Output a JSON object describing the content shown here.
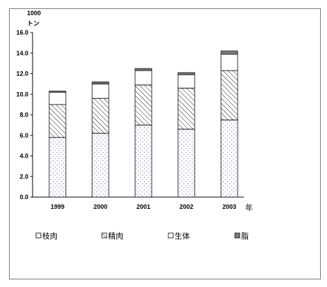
{
  "chart_data": {
    "type": "bar",
    "stacked": true,
    "categories": [
      "1999",
      "2000",
      "2001",
      "2002",
      "2003"
    ],
    "series": [
      {
        "name": "枝肉",
        "values": [
          5.8,
          6.2,
          7.0,
          6.6,
          7.5
        ],
        "fill": "dots",
        "color": "#9a9ad6"
      },
      {
        "name": "精肉",
        "values": [
          3.2,
          3.4,
          3.9,
          4.0,
          4.8
        ],
        "fill": "hatch",
        "color": "#000000"
      },
      {
        "name": "生体",
        "values": [
          1.2,
          1.4,
          1.4,
          1.3,
          1.6
        ],
        "fill": "white",
        "color": "#ffffff"
      },
      {
        "name": "脂",
        "values": [
          0.1,
          0.2,
          0.2,
          0.2,
          0.3
        ],
        "fill": "solid",
        "color": "#808080"
      }
    ],
    "ylim": [
      0,
      16
    ],
    "yticks": [
      "0.0",
      "2.0",
      "4.0",
      "6.0",
      "8.0",
      "10.0",
      "12.0",
      "14.0",
      "16.0"
    ],
    "y_unit_line1": "1000",
    "y_unit_line2": "トン",
    "x_unit": "年",
    "legend_position": "bottom"
  }
}
